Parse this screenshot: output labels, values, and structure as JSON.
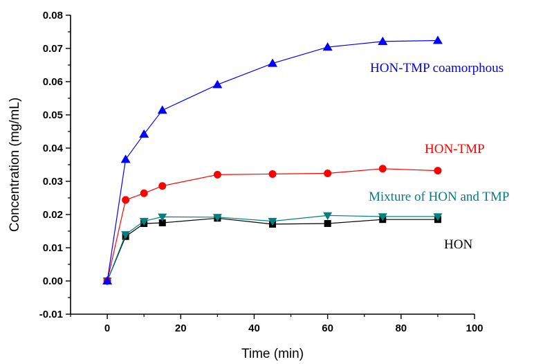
{
  "chart_data": {
    "type": "line",
    "xlabel": "Time (min)",
    "ylabel": "Concentration (mg/mL)",
    "xlim": [
      -10,
      100
    ],
    "ylim": [
      -0.01,
      0.08
    ],
    "xticks": [
      0,
      20,
      40,
      60,
      80,
      100
    ],
    "yticks": [
      -0.01,
      0.0,
      0.01,
      0.02,
      0.03,
      0.04,
      0.05,
      0.06,
      0.07,
      0.08
    ],
    "xtick_labels": [
      "0",
      "20",
      "40",
      "60",
      "80",
      "100"
    ],
    "ytick_labels": [
      "-0.01",
      "0.00",
      "0.01",
      "0.02",
      "0.03",
      "0.04",
      "0.05",
      "0.06",
      "0.07",
      "0.08"
    ],
    "grid": false,
    "legend": "inline labels",
    "x": [
      0,
      5,
      10,
      15,
      30,
      45,
      60,
      75,
      90
    ],
    "series": [
      {
        "name": "HON-TMP coamorphous",
        "marker": "triangle-up",
        "color": "#0000ff",
        "values": [
          0.0,
          0.0366,
          0.0442,
          0.0514,
          0.0591,
          0.0655,
          0.0704,
          0.0721,
          0.0724
        ]
      },
      {
        "name": "HON-TMP",
        "marker": "circle",
        "color": "#ff0000",
        "values": [
          0.0,
          0.0244,
          0.0264,
          0.0286,
          0.032,
          0.0322,
          0.0324,
          0.0338,
          0.0332
        ]
      },
      {
        "name": "Mixture of HON and TMP",
        "marker": "triangle-down",
        "color": "#008080",
        "values": [
          0.0,
          0.014,
          0.018,
          0.0193,
          0.0192,
          0.018,
          0.0197,
          0.0194,
          0.0194
        ]
      },
      {
        "name": "HON",
        "marker": "square",
        "color": "#000000",
        "values": [
          0.0,
          0.0134,
          0.0173,
          0.0175,
          0.0189,
          0.0171,
          0.0173,
          0.0185,
          0.0185
        ]
      }
    ]
  }
}
